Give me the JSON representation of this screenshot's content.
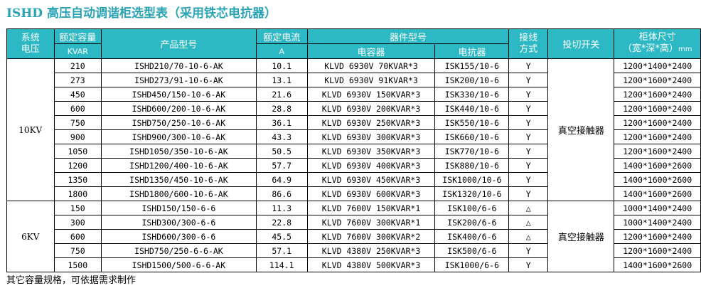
{
  "title": "ISHD 高压自动调谐柜选型表（采用铁芯电抗器）",
  "headers": {
    "system_voltage": [
      "系统",
      "电压"
    ],
    "rated_capacity": [
      "额定容量",
      "KVAR"
    ],
    "product_model": "产品型号",
    "rated_current": [
      "额定电流",
      "A"
    ],
    "component_model": "器件型号",
    "capacitor": "电容器",
    "reactor": "电抗器",
    "wiring": [
      "接线",
      "方式"
    ],
    "switching": "投切开关",
    "cabinet_size": [
      "柜体尺寸",
      "（宽*深*高）",
      "mm"
    ]
  },
  "groups": [
    {
      "voltage": "10KV",
      "switch": "真空接触器",
      "rows": [
        {
          "capacity": "210",
          "model": "ISHD210/70-10-6-AK",
          "current": "10.1",
          "capacitor": "KLVD 6930V 70KVAR*3",
          "reactor": "ISK155/10-6",
          "wiring": "Y",
          "size": "1200*1400*2400"
        },
        {
          "capacity": "273",
          "model": "ISHD273/91-10-6-AK",
          "current": "13.1",
          "capacitor": "KLVD 6930V 91KVAR*3",
          "reactor": "ISK200/10-6",
          "wiring": "Y",
          "size": "1200*1600*2400"
        },
        {
          "capacity": "450",
          "model": "ISHD450/150-10-6-AK",
          "current": "21.6",
          "capacitor": "KLVD 6930V 150KVAR*3",
          "reactor": "ISK330/10-6",
          "wiring": "Y",
          "size": "1200*1600*2400"
        },
        {
          "capacity": "600",
          "model": "ISHD600/200-10-6-AK",
          "current": "28.8",
          "capacitor": "KLVD 6930V 200KVAR*3",
          "reactor": "ISK440/10-6",
          "wiring": "Y",
          "size": "1200*1600*2400"
        },
        {
          "capacity": "750",
          "model": "ISHD750/250-10-6-AK",
          "current": "36.1",
          "capacitor": "KLVD 6930V 250KVAR*3",
          "reactor": "ISK550/10-6",
          "wiring": "Y",
          "size": "1200*1600*2400"
        },
        {
          "capacity": "900",
          "model": "ISHD900/300-10-6-AK",
          "current": "43.3",
          "capacitor": "KLVD 6930V 300KVAR*3",
          "reactor": "ISK660/10-6",
          "wiring": "Y",
          "size": "1200*1600*2400"
        },
        {
          "capacity": "1050",
          "model": "ISHD1050/350-10-6-AK",
          "current": "50.5",
          "capacitor": "KLVD 6930V 350KVAR*3",
          "reactor": "ISK770/10-6",
          "wiring": "Y",
          "size": "1200*1600*2400"
        },
        {
          "capacity": "1200",
          "model": "ISHD1200/400-10-6-AK",
          "current": "57.7",
          "capacitor": "KLVD 6930V 400KVAR*3",
          "reactor": "ISK880/10-6",
          "wiring": "Y",
          "size": "1400*1600*2600"
        },
        {
          "capacity": "1350",
          "model": "ISHD1350/450-10-6-AK",
          "current": "64.9",
          "capacitor": "KLVD 6930V 450KVAR*3",
          "reactor": "ISK1000/10-6",
          "wiring": "Y",
          "size": "1400*1600*2600"
        },
        {
          "capacity": "1800",
          "model": "ISHD1800/600-10-6-AK",
          "current": "86.6",
          "capacitor": "KLVD 6930V 600KVAR*3",
          "reactor": "ISK1320/10-6",
          "wiring": "Y",
          "size": "1400*1600*2600"
        }
      ]
    },
    {
      "voltage": "6KV",
      "switch": "真空接触器",
      "rows": [
        {
          "capacity": "150",
          "model": "ISHD150/150-6-6",
          "current": "11.3",
          "capacitor": "KLVD 7600V 150KVAR*1",
          "reactor": "ISK100/6-6",
          "wiring": "△",
          "size": "1000*1400*2400"
        },
        {
          "capacity": "300",
          "model": "ISHD300/300-6-6",
          "current": "22.8",
          "capacitor": "KLVD 7600V 300KVAR*1",
          "reactor": "ISK200/6-6",
          "wiring": "△",
          "size": "1000*1400*2400"
        },
        {
          "capacity": "600",
          "model": "ISHD600/300-6-6",
          "current": "45.5",
          "capacitor": "KLVD 7600V 300KVAR*2",
          "reactor": "ISK400/6-6",
          "wiring": "△",
          "size": "1200*1600*2400"
        },
        {
          "capacity": "750",
          "model": "ISHD750/250-6-6-AK",
          "current": "57.1",
          "capacitor": "KLVD 4380V 250KVAR*3",
          "reactor": "ISK500/6-6",
          "wiring": "Y",
          "size": "1200*1600*2400"
        },
        {
          "capacity": "1500",
          "model": "ISHD1500/500-6-6-AK",
          "current": "114.1",
          "capacitor": "KLVD 4380V 500KVAR*3",
          "reactor": "ISK1000/6-6",
          "wiring": "Y",
          "size": "1400*1600*2600"
        }
      ]
    }
  ],
  "note": "其它容量规格，可依据需求制作"
}
